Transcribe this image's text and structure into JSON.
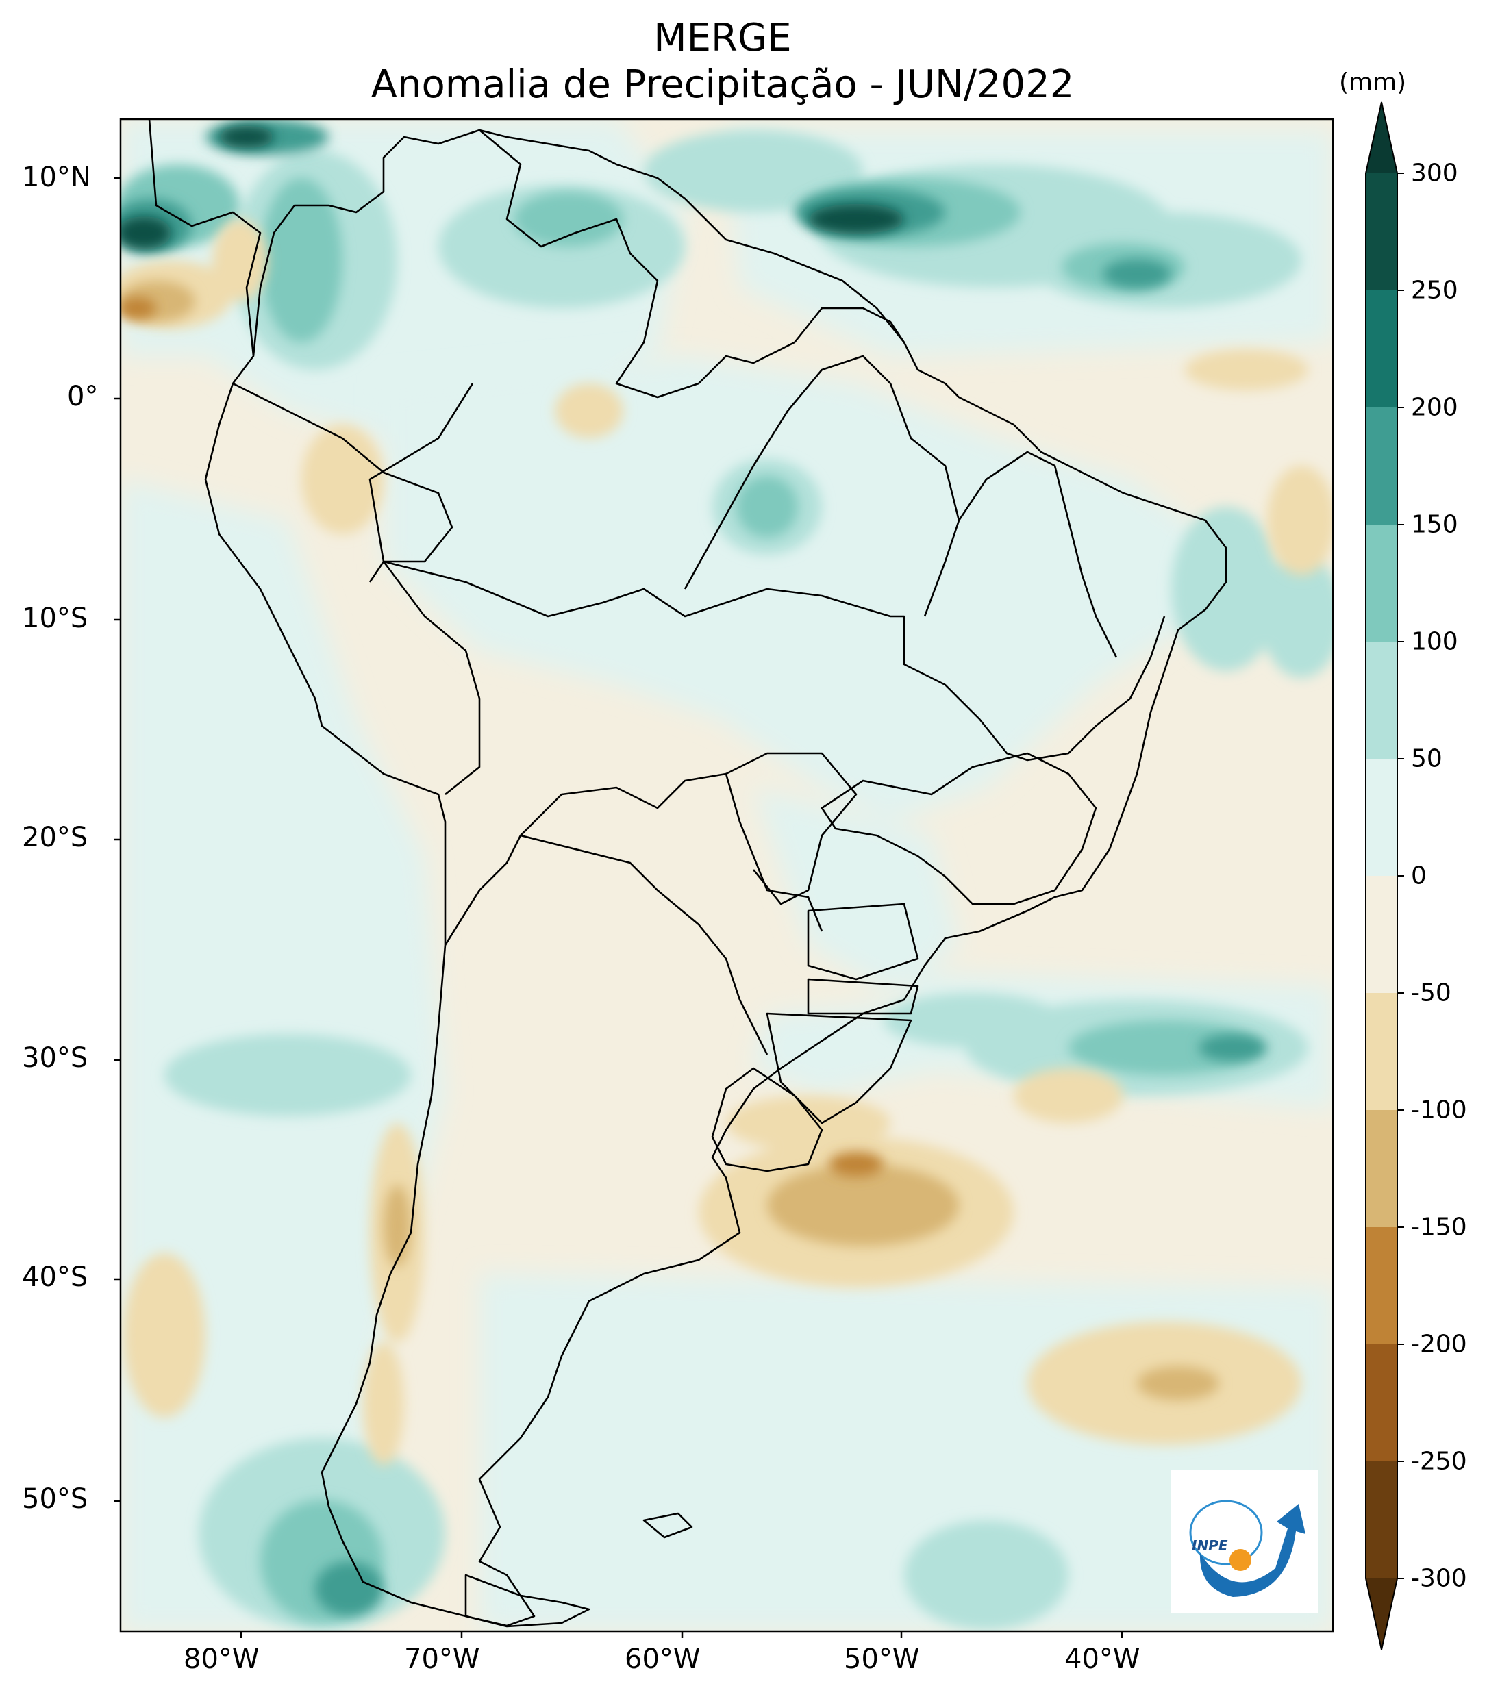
{
  "title": "MERGE",
  "subtitle": "Anomalia de Precipitação - JUN/2022",
  "colorbar": {
    "unit": "(mm)",
    "ticks": [
      "300",
      "250",
      "200",
      "150",
      "100",
      "50",
      "0",
      "-50",
      "-100",
      "-150",
      "-200",
      "-250",
      "-300"
    ],
    "levels": [
      {
        "from": 250,
        "to": 300,
        "color": "#0f4f44"
      },
      {
        "from": 200,
        "to": 250,
        "color": "#17766b"
      },
      {
        "from": 150,
        "to": 200,
        "color": "#3f9d92"
      },
      {
        "from": 100,
        "to": 150,
        "color": "#7fc9bd"
      },
      {
        "from": 50,
        "to": 100,
        "color": "#b3e1da"
      },
      {
        "from": 0,
        "to": 50,
        "color": "#e1f3f0"
      },
      {
        "from": -50,
        "to": 0,
        "color": "#f4efe0"
      },
      {
        "from": -100,
        "to": -50,
        "color": "#efdcae"
      },
      {
        "from": -150,
        "to": -100,
        "color": "#d8b674"
      },
      {
        "from": -200,
        "to": -150,
        "color": "#bf8336"
      },
      {
        "from": -250,
        "to": -200,
        "color": "#995b1c"
      },
      {
        "from": -300,
        "to": -250,
        "color": "#6b3f10"
      }
    ],
    "over_color": "#0a3a32",
    "under_color": "#4f2e0a"
  },
  "axes": {
    "lon_ticks": [
      "80°W",
      "70°W",
      "60°W",
      "50°W",
      "40°W"
    ],
    "lat_ticks": [
      "10°N",
      "0°",
      "10°S",
      "20°S",
      "30°S",
      "40°S",
      "50°S"
    ]
  },
  "logo": {
    "text": "INPE"
  }
}
